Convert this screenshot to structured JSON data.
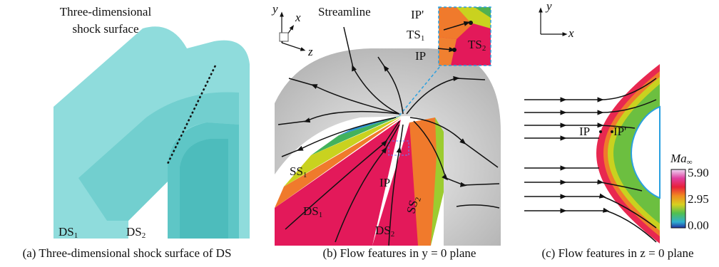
{
  "panel_a": {
    "title": "Three-dimensional",
    "title2": "shock surface",
    "ds1": {
      "text": "DS",
      "sub": "1"
    },
    "ds2": {
      "text": "DS",
      "sub": "2"
    },
    "caption": "(a) Three-dimensional shock surface of DS"
  },
  "panel_b": {
    "axis_y": "y",
    "axis_x": "x",
    "axis_z": "z",
    "streamline": "Streamline",
    "ip_prime_inset": "IP'",
    "ts1": {
      "text": "TS",
      "sub": "1"
    },
    "ts2": {
      "text": "TS",
      "sub": "2"
    },
    "ip_inset": "IP",
    "ss1": {
      "text": "SS",
      "sub": "1"
    },
    "ip": "IP",
    "ds1": {
      "text": "DS",
      "sub": "1"
    },
    "ds2": {
      "text": "DS",
      "sub": "2"
    },
    "ss2": {
      "text": "SS",
      "sub": "2"
    },
    "caption": "(b) Flow features in  y = 0 plane"
  },
  "panel_c": {
    "axis_y": "y",
    "axis_x": "x",
    "ip": "IP",
    "ip_prime": "IP'",
    "colorbar": {
      "title": {
        "text": "Ma",
        "sub": "∞"
      },
      "ticks": [
        "5.90",
        "2.95",
        "0.00"
      ]
    },
    "caption": "(c) Flow features in z = 0 plane"
  }
}
